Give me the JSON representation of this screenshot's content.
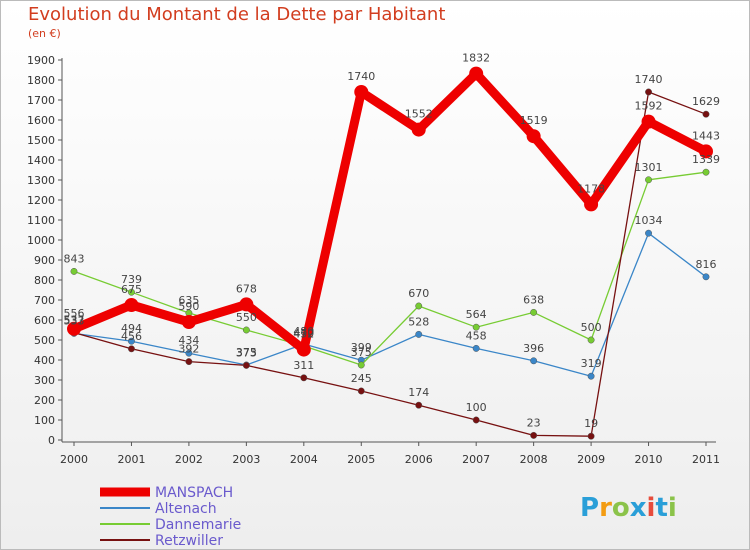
{
  "title": "Evolution du Montant de la Dette par Habitant",
  "subtitle": "(en €)",
  "logo": {
    "text": "Proxiti",
    "letters": [
      "P",
      "r",
      "o",
      "x",
      "i",
      "t",
      "i"
    ]
  },
  "chart_data": {
    "type": "line",
    "title": "Evolution du Montant de la Dette par Habitant",
    "subtitle": "(en €)",
    "xlabel": "",
    "ylabel": "",
    "categories": [
      "2000",
      "2001",
      "2002",
      "2003",
      "2004",
      "2005",
      "2006",
      "2007",
      "2008",
      "2009",
      "2010",
      "2011"
    ],
    "ylim": [
      0,
      1900
    ],
    "yticks": [
      0,
      100,
      200,
      300,
      400,
      500,
      600,
      700,
      800,
      900,
      1000,
      1100,
      1200,
      1300,
      1400,
      1500,
      1600,
      1700,
      1800,
      1900
    ],
    "grid": false,
    "legend": "bottom-left",
    "series": [
      {
        "name": "MANSPACH",
        "color": "#ee0000",
        "values": [
          556,
          675,
          590,
          678,
          452,
          1740,
          1552,
          1832,
          1519,
          1178,
          1592,
          1443
        ]
      },
      {
        "name": "Altenach",
        "color": "#3a86c8",
        "values": [
          533,
          494,
          434,
          375,
          480,
          399,
          528,
          458,
          396,
          319,
          1034,
          816
        ]
      },
      {
        "name": "Dannemarie",
        "color": "#77cc33",
        "values": [
          843,
          739,
          635,
          550,
          470,
          375,
          670,
          564,
          638,
          500,
          1301,
          1339
        ]
      },
      {
        "name": "Retzwiller",
        "color": "#771111",
        "values": [
          537,
          456,
          392,
          373,
          311,
          245,
          174,
          100,
          23,
          19,
          1740,
          1629
        ]
      }
    ]
  }
}
